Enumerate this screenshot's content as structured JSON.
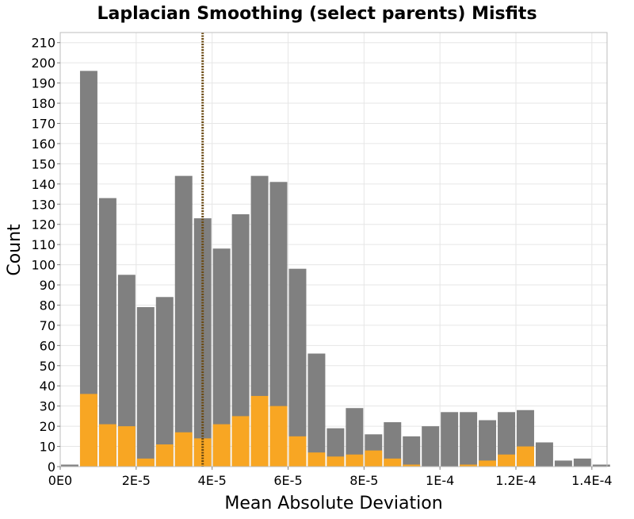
{
  "chart_data": {
    "type": "bar",
    "title": "Laplacian Smoothing (select parents) Misfits",
    "xlabel": "Mean Absolute Deviation",
    "ylabel": "Count",
    "xlim": [
      0,
      0.000144
    ],
    "ylim": [
      0,
      215
    ],
    "bin_width": 5e-06,
    "x_ticks": [
      {
        "value": 0,
        "label": "0E0"
      },
      {
        "value": 2e-05,
        "label": "2E-5"
      },
      {
        "value": 4e-05,
        "label": "4E-5"
      },
      {
        "value": 6e-05,
        "label": "6E-5"
      },
      {
        "value": 8e-05,
        "label": "8E-5"
      },
      {
        "value": 0.0001,
        "label": "1E-4"
      },
      {
        "value": 0.00012,
        "label": "1.2E-4"
      },
      {
        "value": 0.00014,
        "label": "1.4E-4"
      }
    ],
    "y_ticks": [
      0,
      10,
      20,
      30,
      40,
      50,
      60,
      70,
      80,
      90,
      100,
      110,
      120,
      130,
      140,
      150,
      160,
      170,
      180,
      190,
      200,
      210
    ],
    "bin_starts": [
      0,
      5e-06,
      1e-05,
      1.5e-05,
      2e-05,
      2.5e-05,
      3e-05,
      3.5e-05,
      4e-05,
      4.5e-05,
      5e-05,
      5.5e-05,
      6e-05,
      6.5e-05,
      7e-05,
      7.5e-05,
      8e-05,
      8.5e-05,
      9e-05,
      9.5e-05,
      0.0001,
      0.000105,
      0.00011,
      0.000115,
      0.00012,
      0.000125,
      0.00013,
      0.000135,
      0.00014
    ],
    "series": [
      {
        "color": "#808080",
        "values": [
          1,
          196,
          133,
          95,
          79,
          84,
          144,
          123,
          108,
          125,
          144,
          141,
          98,
          56,
          19,
          29,
          16,
          22,
          15,
          20,
          27,
          27,
          23,
          27,
          28,
          12,
          3,
          4,
          1
        ]
      },
      {
        "color": "#f8a623",
        "values": [
          0,
          36,
          21,
          20,
          4,
          11,
          17,
          14,
          21,
          25,
          35,
          30,
          15,
          7,
          5,
          6,
          8,
          4,
          1,
          0,
          0,
          1,
          3,
          6,
          10,
          0,
          0,
          0,
          0
        ]
      }
    ],
    "reference_line": {
      "x": 3.75e-05,
      "style": "dotted",
      "color": "#6b4a12"
    },
    "grid": true,
    "legend": "none"
  }
}
